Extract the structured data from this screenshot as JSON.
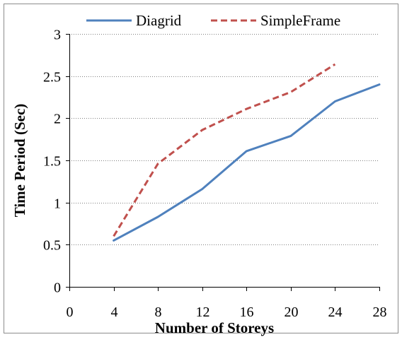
{
  "chart_data": {
    "type": "line",
    "title": "",
    "xlabel": "Number of Storeys",
    "ylabel": "Time Period (Sec)",
    "xlim": [
      0,
      28
    ],
    "ylim": [
      0,
      3
    ],
    "xticks": [
      0,
      4,
      8,
      12,
      16,
      20,
      24,
      28
    ],
    "xtick_labels": [
      "0",
      "4",
      "8",
      "12",
      "16",
      "20",
      "24",
      "28"
    ],
    "yticks": [
      0,
      0.5,
      1,
      1.5,
      2,
      2.5,
      3
    ],
    "ytick_labels": [
      "0",
      "0.5",
      "1",
      "1.5",
      "2",
      "2.5",
      "3"
    ],
    "grid": "horizontal dotted",
    "legend_position": "top",
    "series": [
      {
        "name": "Diagrid",
        "style": "solid",
        "color": "#4f81bd",
        "x": [
          4,
          8,
          12,
          16,
          20,
          24,
          28
        ],
        "y": [
          0.55,
          0.83,
          1.16,
          1.61,
          1.79,
          2.2,
          2.4
        ]
      },
      {
        "name": "SimpleFrame",
        "style": "dashed",
        "color": "#c0504d",
        "x": [
          4,
          8,
          12,
          16,
          20,
          24
        ],
        "y": [
          0.6,
          1.46,
          1.86,
          2.11,
          2.31,
          2.64
        ]
      }
    ]
  }
}
